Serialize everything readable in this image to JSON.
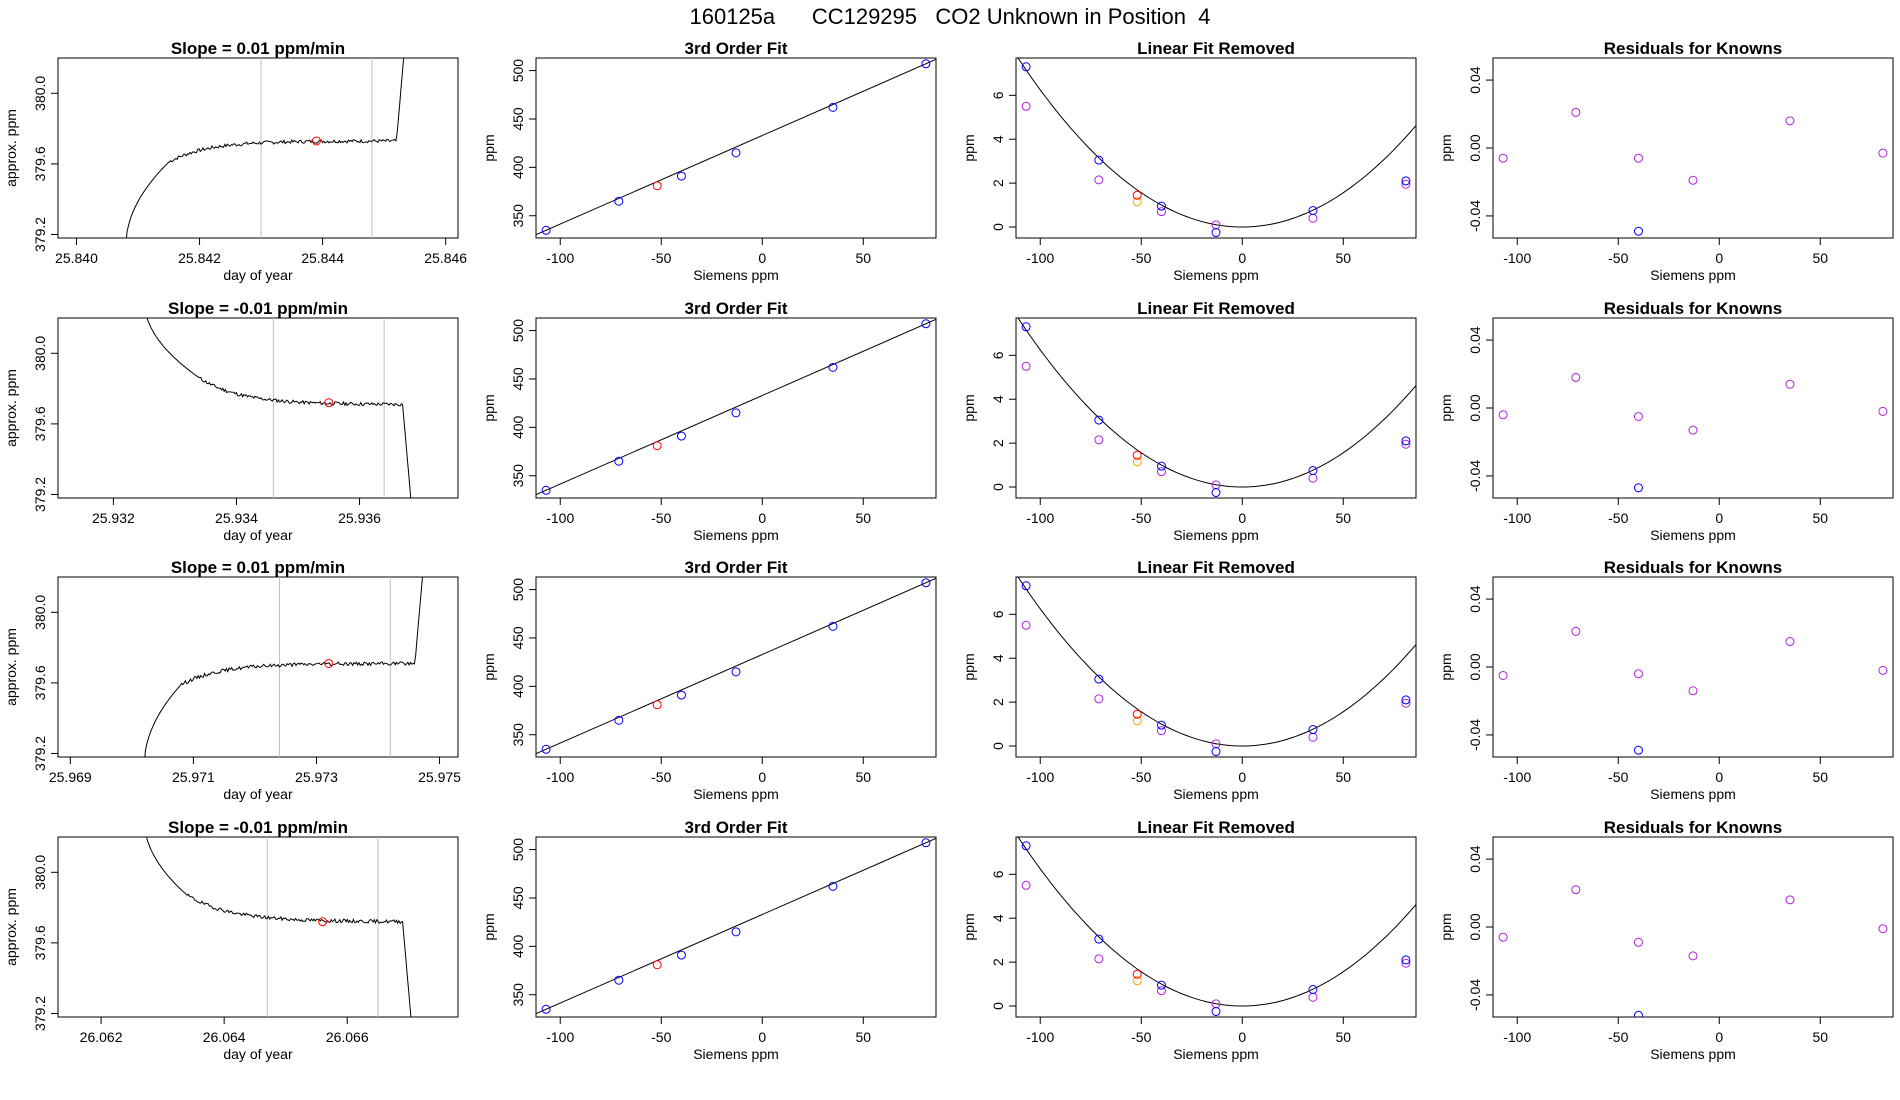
{
  "figure": {
    "title": "160125a      CC129295   CO2 Unknown in Position  4"
  },
  "chart_data": [
    {
      "type": "line",
      "panel": "raw",
      "row": 1,
      "title": "Slope =  0.01  ppm/min",
      "xlabel": "day of year",
      "ylabel": "approx. ppm",
      "xlim": [
        25.8397,
        25.8462
      ],
      "ylim": [
        379.18,
        380.2
      ],
      "xticks": [
        "25.840",
        "25.842",
        "25.844",
        "25.846"
      ],
      "yticks": [
        "379.2",
        "379.6",
        "380.0"
      ],
      "vlines": [
        25.843,
        25.8448
      ],
      "marker": {
        "x": 25.8439,
        "y": 379.73
      },
      "profile": "up",
      "segments": [
        [
          25.8408,
          25.8415
        ],
        [
          25.8415,
          25.8452
        ],
        [
          25.8452,
          25.8454
        ]
      ],
      "plateau": 379.73
    },
    {
      "type": "scatter",
      "panel": "fit",
      "row": 1,
      "title": "3rd Order Fit",
      "xlabel": "Siemens ppm",
      "ylabel": "ppm",
      "xlim": [
        -112,
        86
      ],
      "ylim": [
        327,
        513
      ],
      "xticks": [
        "-100",
        "-50",
        "0",
        "50"
      ],
      "yticks": [
        "350",
        "400",
        "450",
        "500"
      ],
      "x": [
        -107,
        -71,
        -40,
        -13,
        35,
        81
      ],
      "y": [
        335,
        365,
        391,
        415,
        462,
        507
      ],
      "unknown": {
        "x": -52,
        "y": 381
      }
    },
    {
      "type": "scatter",
      "panel": "linear-removed",
      "row": 1,
      "title": "Linear Fit Removed",
      "xlabel": "Siemens ppm",
      "ylabel": "ppm",
      "xlim": [
        -112,
        86
      ],
      "ylim": [
        -0.5,
        7.7
      ],
      "xticks": [
        "-100",
        "-50",
        "0",
        "50"
      ],
      "yticks": [
        "0",
        "2",
        "4",
        "6"
      ],
      "x": [
        -107,
        -71,
        -40,
        -13,
        35,
        81
      ],
      "y_fit": [
        7.3,
        3.05,
        0.95,
        -0.25,
        0.75,
        2.1
      ],
      "y_obs": [
        5.5,
        2.15,
        0.7,
        0.1,
        0.4,
        1.95
      ],
      "unknown": {
        "x": -52,
        "y_fit": 1.45,
        "y_obs": 1.15
      },
      "curve_a": 0.000625
    },
    {
      "type": "scatter",
      "panel": "residuals",
      "row": 1,
      "title": "Residuals for Knowns",
      "xlabel": "Siemens ppm",
      "ylabel": "ppm",
      "xlim": [
        -112,
        86
      ],
      "ylim": [
        -0.053,
        0.053
      ],
      "xticks": [
        "-100",
        "-50",
        "0",
        "50"
      ],
      "yticks": [
        "-0.04",
        "0.00",
        "0.04"
      ],
      "x": [
        -107,
        -71,
        -40,
        -13,
        35,
        81
      ],
      "y": [
        -0.006,
        0.021,
        -0.006,
        -0.019,
        0.016,
        -0.003
      ],
      "y_blue": [
        -0.049
      ]
    },
    {
      "type": "line",
      "panel": "raw",
      "row": 2,
      "title": "Slope =  -0.01  ppm/min",
      "xlabel": "day of year",
      "ylabel": "approx. ppm",
      "xlim": [
        25.9311,
        25.9376
      ],
      "ylim": [
        379.18,
        380.2
      ],
      "xticks": [
        "25.932",
        "25.934",
        "25.936"
      ],
      "yticks": [
        "379.2",
        "379.6",
        "380.0"
      ],
      "vlines": [
        25.9346,
        25.9364
      ],
      "marker": {
        "x": 25.9355,
        "y": 379.72
      },
      "profile": "down",
      "segments": [
        [
          25.9325,
          25.9334
        ],
        [
          25.9334,
          25.9367
        ],
        [
          25.9367,
          25.9369
        ]
      ],
      "plateau": 379.71
    },
    {
      "type": "scatter",
      "panel": "fit",
      "row": 2,
      "title": "3rd Order Fit",
      "xlabel": "Siemens ppm",
      "ylabel": "ppm",
      "xlim": [
        -112,
        86
      ],
      "ylim": [
        327,
        513
      ],
      "xticks": [
        "-100",
        "-50",
        "0",
        "50"
      ],
      "yticks": [
        "350",
        "400",
        "450",
        "500"
      ],
      "x": [
        -107,
        -71,
        -40,
        -13,
        35,
        81
      ],
      "y": [
        335,
        365,
        391,
        415,
        462,
        507
      ],
      "unknown": {
        "x": -52,
        "y": 381
      }
    },
    {
      "type": "scatter",
      "panel": "linear-removed",
      "row": 2,
      "title": "Linear Fit Removed",
      "xlabel": "Siemens ppm",
      "ylabel": "ppm",
      "xlim": [
        -112,
        86
      ],
      "ylim": [
        -0.5,
        7.7
      ],
      "xticks": [
        "-100",
        "-50",
        "0",
        "50"
      ],
      "yticks": [
        "0",
        "2",
        "4",
        "6"
      ],
      "x": [
        -107,
        -71,
        -40,
        -13,
        35,
        81
      ],
      "y_fit": [
        7.3,
        3.05,
        0.95,
        -0.25,
        0.75,
        2.1
      ],
      "y_obs": [
        5.5,
        2.15,
        0.7,
        0.1,
        0.4,
        1.95
      ],
      "unknown": {
        "x": -52,
        "y_fit": 1.45,
        "y_obs": 1.15
      },
      "curve_a": 0.000625
    },
    {
      "type": "scatter",
      "panel": "residuals",
      "row": 2,
      "title": "Residuals for Knowns",
      "xlabel": "Siemens ppm",
      "ylabel": "ppm",
      "xlim": [
        -112,
        86
      ],
      "ylim": [
        -0.053,
        0.053
      ],
      "xticks": [
        "-100",
        "-50",
        "0",
        "50"
      ],
      "yticks": [
        "-0.04",
        "0.00",
        "0.04"
      ],
      "x": [
        -107,
        -71,
        -40,
        -13,
        35,
        81
      ],
      "y": [
        -0.004,
        0.018,
        -0.005,
        -0.013,
        0.014,
        -0.002
      ],
      "y_blue": [
        -0.047
      ]
    },
    {
      "type": "line",
      "panel": "raw",
      "row": 3,
      "title": "Slope =  0.01  ppm/min",
      "xlabel": "day of year",
      "ylabel": "approx. ppm",
      "xlim": [
        25.9688,
        25.9753
      ],
      "ylim": [
        379.18,
        380.2
      ],
      "xticks": [
        "25.969",
        "25.971",
        "25.973",
        "25.975"
      ],
      "yticks": [
        "379.2",
        "379.6",
        "380.0"
      ],
      "vlines": [
        25.9724,
        25.9742
      ],
      "marker": {
        "x": 25.9732,
        "y": 379.71
      },
      "profile": "up",
      "segments": [
        [
          25.9702,
          25.9708
        ],
        [
          25.9708,
          25.9746
        ],
        [
          25.9746,
          25.9748
        ]
      ],
      "plateau": 379.71
    },
    {
      "type": "scatter",
      "panel": "fit",
      "row": 3,
      "title": "3rd Order Fit",
      "xlabel": "Siemens ppm",
      "ylabel": "ppm",
      "xlim": [
        -112,
        86
      ],
      "ylim": [
        327,
        513
      ],
      "xticks": [
        "-100",
        "-50",
        "0",
        "50"
      ],
      "yticks": [
        "350",
        "400",
        "450",
        "500"
      ],
      "x": [
        -107,
        -71,
        -40,
        -13,
        35,
        81
      ],
      "y": [
        335,
        365,
        391,
        415,
        462,
        507
      ],
      "unknown": {
        "x": -52,
        "y": 381
      }
    },
    {
      "type": "scatter",
      "panel": "linear-removed",
      "row": 3,
      "title": "Linear Fit Removed",
      "xlabel": "Siemens ppm",
      "ylabel": "ppm",
      "xlim": [
        -112,
        86
      ],
      "ylim": [
        -0.5,
        7.7
      ],
      "xticks": [
        "-100",
        "-50",
        "0",
        "50"
      ],
      "yticks": [
        "0",
        "2",
        "4",
        "6"
      ],
      "x": [
        -107,
        -71,
        -40,
        -13,
        35,
        81
      ],
      "y_fit": [
        7.3,
        3.05,
        0.95,
        -0.25,
        0.75,
        2.1
      ],
      "y_obs": [
        5.5,
        2.15,
        0.7,
        0.1,
        0.4,
        1.95
      ],
      "unknown": {
        "x": -52,
        "y_fit": 1.45,
        "y_obs": 1.15
      },
      "curve_a": 0.000625
    },
    {
      "type": "scatter",
      "panel": "residuals",
      "row": 3,
      "title": "Residuals for Knowns",
      "xlabel": "Siemens ppm",
      "ylabel": "ppm",
      "xlim": [
        -112,
        86
      ],
      "ylim": [
        -0.053,
        0.053
      ],
      "xticks": [
        "-100",
        "-50",
        "0",
        "50"
      ],
      "yticks": [
        "-0.04",
        "0.00",
        "0.04"
      ],
      "x": [
        -107,
        -71,
        -40,
        -13,
        35,
        81
      ],
      "y": [
        -0.005,
        0.021,
        -0.004,
        -0.014,
        0.015,
        -0.002
      ],
      "y_blue": [
        -0.049
      ]
    },
    {
      "type": "line",
      "panel": "raw",
      "row": 4,
      "title": "Slope =  -0.01  ppm/min",
      "xlabel": "day of year",
      "ylabel": "approx. ppm",
      "xlim": [
        26.0613,
        26.0678
      ],
      "ylim": [
        379.18,
        380.2
      ],
      "xticks": [
        "26.062",
        "26.064",
        "26.066"
      ],
      "yticks": [
        "379.2",
        "379.6",
        "380.0"
      ],
      "vlines": [
        26.0647,
        26.0665
      ],
      "marker": {
        "x": 26.0656,
        "y": 379.72
      },
      "profile": "down",
      "segments": [
        [
          26.0627,
          26.0634
        ],
        [
          26.0634,
          26.0669
        ],
        [
          26.0669,
          26.0671
        ]
      ],
      "plateau": 379.72
    },
    {
      "type": "scatter",
      "panel": "fit",
      "row": 4,
      "title": "3rd Order Fit",
      "xlabel": "Siemens ppm",
      "ylabel": "ppm",
      "xlim": [
        -112,
        86
      ],
      "ylim": [
        327,
        513
      ],
      "xticks": [
        "-100",
        "-50",
        "0",
        "50"
      ],
      "yticks": [
        "350",
        "400",
        "450",
        "500"
      ],
      "x": [
        -107,
        -71,
        -40,
        -13,
        35,
        81
      ],
      "y": [
        335,
        365,
        391,
        415,
        462,
        507
      ],
      "unknown": {
        "x": -52,
        "y": 381
      }
    },
    {
      "type": "scatter",
      "panel": "linear-removed",
      "row": 4,
      "title": "Linear Fit Removed",
      "xlabel": "Siemens ppm",
      "ylabel": "ppm",
      "xlim": [
        -112,
        86
      ],
      "ylim": [
        -0.5,
        7.7
      ],
      "xticks": [
        "-100",
        "-50",
        "0",
        "50"
      ],
      "yticks": [
        "0",
        "2",
        "4",
        "6"
      ],
      "x": [
        -107,
        -71,
        -40,
        -13,
        35,
        81
      ],
      "y_fit": [
        7.3,
        3.05,
        0.95,
        -0.25,
        0.75,
        2.1
      ],
      "y_obs": [
        5.5,
        2.15,
        0.7,
        0.1,
        0.4,
        1.95
      ],
      "unknown": {
        "x": -52,
        "y_fit": 1.45,
        "y_obs": 1.15
      },
      "curve_a": 0.000625
    },
    {
      "type": "scatter",
      "panel": "residuals",
      "row": 4,
      "title": "Residuals for Knowns",
      "xlabel": "Siemens ppm",
      "ylabel": "ppm",
      "xlim": [
        -112,
        86
      ],
      "ylim": [
        -0.053,
        0.053
      ],
      "xticks": [
        "-100",
        "-50",
        "0",
        "50"
      ],
      "yticks": [
        "-0.04",
        "0.00",
        "0.04"
      ],
      "x": [
        -107,
        -71,
        -40,
        -13,
        35,
        81
      ],
      "y": [
        -0.006,
        0.022,
        -0.009,
        -0.017,
        0.016,
        -0.001
      ],
      "y_blue": [
        -0.052
      ]
    }
  ],
  "colors": {
    "known": "#0000ff",
    "unknown": "#ff0000",
    "observed": "#b620e0",
    "unknown_observed": "#ffa500",
    "vline": "#bebebe",
    "axis": "#000000"
  }
}
